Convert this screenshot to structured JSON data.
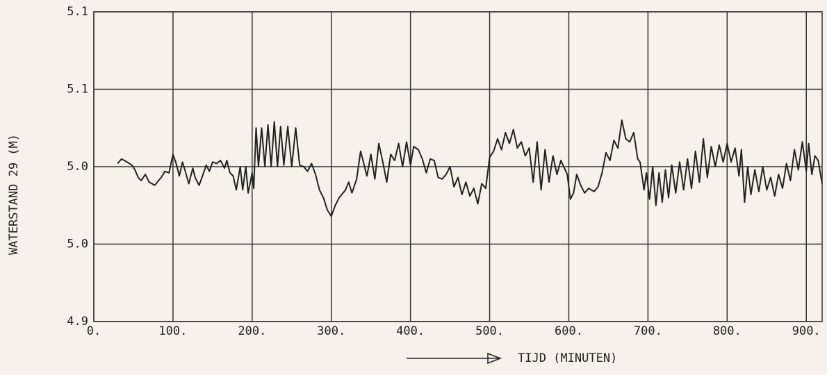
{
  "chart_data": {
    "type": "line",
    "y_label": "WATERSTAND 29 (M)",
    "x_label": "TIJD (MINUTEN)",
    "xlim": [
      0,
      920
    ],
    "ylim": [
      4.9,
      5.1
    ],
    "xticks": [
      {
        "value": 0,
        "label": "0."
      },
      {
        "value": 100,
        "label": "100."
      },
      {
        "value": 200,
        "label": "200."
      },
      {
        "value": 300,
        "label": "300."
      },
      {
        "value": 400,
        "label": "400."
      },
      {
        "value": 500,
        "label": "500."
      },
      {
        "value": 600,
        "label": "600."
      },
      {
        "value": 700,
        "label": "700."
      },
      {
        "value": 800,
        "label": "800."
      },
      {
        "value": 900,
        "label": "900."
      }
    ],
    "yticks": [
      {
        "value": 4.9,
        "label": "4.9"
      },
      {
        "value": 4.95,
        "label": "5.0"
      },
      {
        "value": 5.0,
        "label": "5.0"
      },
      {
        "value": 5.05,
        "label": "5.1"
      },
      {
        "value": 5.1,
        "label": "5.1"
      }
    ],
    "grid": true,
    "color": "#222222",
    "x": [
      30,
      35,
      42,
      48,
      52,
      56,
      60,
      65,
      70,
      77,
      85,
      90,
      95,
      100,
      104,
      108,
      112,
      115,
      120,
      125,
      128,
      133,
      138,
      142,
      146,
      150,
      155,
      160,
      165,
      168,
      172,
      176,
      180,
      185,
      188,
      192,
      195,
      200,
      202,
      205,
      208,
      212,
      216,
      220,
      224,
      228,
      232,
      236,
      240,
      245,
      250,
      255,
      260,
      265,
      270,
      275,
      280,
      285,
      290,
      295,
      300,
      305,
      310,
      318,
      322,
      326,
      332,
      337,
      342,
      345,
      350,
      355,
      360,
      365,
      370,
      375,
      380,
      385,
      390,
      395,
      400,
      404,
      410,
      415,
      420,
      425,
      430,
      435,
      440,
      445,
      450,
      455,
      460,
      465,
      470,
      475,
      480,
      485,
      490,
      495,
      500,
      505,
      510,
      515,
      520,
      525,
      530,
      535,
      540,
      545,
      550,
      555,
      560,
      565,
      570,
      575,
      580,
      585,
      590,
      598,
      602,
      606,
      610,
      615,
      620,
      625,
      632,
      637,
      642,
      647,
      652,
      657,
      662,
      667,
      672,
      677,
      682,
      687,
      690,
      695,
      698,
      702,
      706,
      710,
      714,
      718,
      722,
      726,
      730,
      735,
      740,
      745,
      750,
      755,
      760,
      765,
      770,
      775,
      780,
      785,
      790,
      795,
      800,
      805,
      810,
      815,
      818,
      822,
      826,
      830,
      835,
      840,
      845,
      850,
      855,
      860,
      865,
      870,
      875,
      880,
      885,
      890,
      895,
      900,
      903,
      907,
      911,
      915,
      920
    ],
    "values": [
      5.002,
      5.005,
      5.003,
      5.001,
      4.998,
      4.993,
      4.991,
      4.995,
      4.99,
      4.988,
      4.993,
      4.997,
      4.996,
      5.008,
      5.002,
      4.994,
      5.003,
      4.998,
      4.989,
      4.999,
      4.993,
      4.988,
      4.995,
      5.001,
      4.997,
      5.003,
      5.002,
      5.004,
      4.999,
      5.004,
      4.996,
      4.994,
      4.985,
      5.0,
      4.985,
      5.0,
      4.983,
      4.996,
      4.986,
      5.025,
      5.0,
      5.025,
      5.0,
      5.027,
      5.0,
      5.029,
      5.0,
      5.026,
      5.001,
      5.026,
      5.0,
      5.025,
      5.001,
      5.0,
      4.997,
      5.002,
      4.995,
      4.985,
      4.98,
      4.972,
      4.968,
      4.975,
      4.98,
      4.985,
      4.99,
      4.983,
      4.992,
      5.01,
      5.0,
      4.994,
      5.008,
      4.992,
      5.015,
      5.003,
      4.99,
      5.008,
      5.004,
      5.015,
      5.0,
      5.016,
      5.001,
      5.013,
      5.011,
      5.005,
      4.996,
      5.005,
      5.004,
      4.993,
      4.992,
      4.995,
      5.0,
      4.987,
      4.993,
      4.982,
      4.99,
      4.981,
      4.986,
      4.976,
      4.989,
      4.986,
      5.006,
      5.01,
      5.018,
      5.011,
      5.022,
      5.015,
      5.024,
      5.012,
      5.016,
      5.007,
      5.012,
      4.99,
      5.016,
      4.985,
      5.011,
      4.99,
      5.007,
      4.995,
      5.004,
      4.995,
      4.979,
      4.983,
      4.995,
      4.988,
      4.983,
      4.986,
      4.984,
      4.987,
      4.996,
      5.009,
      5.004,
      5.017,
      5.012,
      5.03,
      5.018,
      5.016,
      5.022,
      5.005,
      5.003,
      4.985,
      4.996,
      4.979,
      5.0,
      4.975,
      4.996,
      4.977,
      4.998,
      4.98,
      5.001,
      4.983,
      5.003,
      4.985,
      5.005,
      4.986,
      5.01,
      4.99,
      5.018,
      4.993,
      5.013,
      5.0,
      5.014,
      5.003,
      5.015,
      5.003,
      5.012,
      4.994,
      5.011,
      4.977,
      5.0,
      4.982,
      4.998,
      4.984,
      5.0,
      4.985,
      4.993,
      4.981,
      4.995,
      4.986,
      5.002,
      4.991,
      5.011,
      4.998,
      5.016,
      4.997,
      5.015,
      4.995,
      5.007,
      5.004,
      4.989
    ]
  }
}
